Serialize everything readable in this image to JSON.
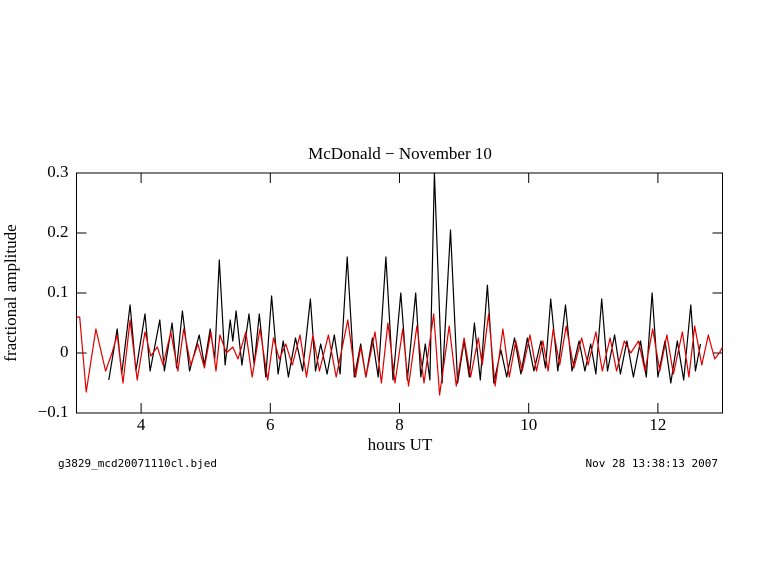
{
  "chart_data": {
    "type": "line",
    "title": "McDonald − November 10",
    "x_label": "hours UT",
    "y_label": "fractional amplitude",
    "footer_left": "g3829_mcd20071110cl.bjed",
    "footer_right": "Nov 28 13:38:13 2007",
    "xlim": [
      3,
      13
    ],
    "xticks": [
      4,
      6,
      8,
      10,
      12
    ],
    "ylim": [
      -0.1,
      0.3
    ],
    "yticks": [
      {
        "value": -0.1,
        "label": "−0.1"
      },
      0,
      0.1,
      0.2,
      0.3
    ],
    "series": [
      {
        "color": "#000000",
        "x": [
          3.5,
          3.63,
          3.7,
          3.83,
          3.92,
          4.06,
          4.14,
          4.29,
          4.36,
          4.48,
          4.55,
          4.64,
          4.75,
          4.9,
          4.98,
          5.07,
          5.14,
          5.21,
          5.3,
          5.38,
          5.42,
          5.47,
          5.56,
          5.67,
          5.75,
          5.83,
          5.93,
          6.02,
          6.12,
          6.2,
          6.28,
          6.39,
          6.5,
          6.62,
          6.7,
          6.78,
          6.88,
          6.99,
          7.08,
          7.19,
          7.3,
          7.4,
          7.48,
          7.58,
          7.67,
          7.79,
          7.9,
          8.02,
          8.12,
          8.25,
          8.33,
          8.4,
          8.47,
          8.54,
          8.66,
          8.79,
          8.9,
          9.0,
          9.08,
          9.16,
          9.25,
          9.36,
          9.46,
          9.57,
          9.66,
          9.78,
          9.88,
          9.98,
          10.08,
          10.19,
          10.26,
          10.34,
          10.45,
          10.57,
          10.67,
          10.78,
          10.87,
          10.96,
          11.04,
          11.13,
          11.22,
          11.33,
          11.42,
          11.52,
          11.62,
          11.73,
          11.82,
          11.91,
          12.0,
          12.11,
          12.2,
          12.3,
          12.4,
          12.51,
          12.58,
          12.66
        ],
        "values": [
          -0.045,
          0.04,
          -0.035,
          0.08,
          -0.03,
          0.065,
          -0.03,
          0.055,
          -0.03,
          0.05,
          -0.025,
          0.07,
          -0.03,
          0.03,
          -0.02,
          0.04,
          -0.01,
          0.155,
          -0.02,
          0.055,
          0.02,
          0.07,
          -0.02,
          0.065,
          -0.02,
          0.065,
          -0.04,
          0.095,
          -0.035,
          0.02,
          -0.04,
          0.025,
          -0.03,
          0.09,
          -0.03,
          0.015,
          -0.035,
          0.03,
          -0.035,
          0.16,
          -0.04,
          0.015,
          -0.04,
          0.025,
          -0.04,
          0.16,
          -0.045,
          0.1,
          -0.045,
          0.1,
          -0.04,
          0.015,
          -0.045,
          0.3,
          -0.05,
          0.205,
          -0.05,
          0.02,
          -0.04,
          0.05,
          -0.045,
          0.113,
          -0.05,
          0.005,
          -0.04,
          0.025,
          -0.035,
          0.025,
          -0.03,
          0.02,
          -0.025,
          0.09,
          -0.03,
          0.08,
          -0.03,
          0.02,
          -0.03,
          0.015,
          -0.035,
          0.09,
          -0.03,
          0.03,
          -0.035,
          0.02,
          -0.04,
          0.02,
          -0.04,
          0.1,
          -0.04,
          0.02,
          -0.05,
          0.02,
          -0.045,
          0.08,
          -0.03,
          0.015
        ]
      },
      {
        "color": "#e00000",
        "x": [
          3.0,
          3.05,
          3.15,
          3.3,
          3.45,
          3.55,
          3.63,
          3.72,
          3.83,
          3.94,
          4.06,
          4.15,
          4.25,
          4.34,
          4.46,
          4.57,
          4.66,
          4.77,
          4.88,
          4.98,
          5.08,
          5.16,
          5.22,
          5.32,
          5.42,
          5.5,
          5.62,
          5.72,
          5.84,
          5.96,
          6.05,
          6.14,
          6.24,
          6.34,
          6.46,
          6.56,
          6.66,
          6.76,
          6.9,
          7.02,
          7.2,
          7.32,
          7.4,
          7.48,
          7.62,
          7.72,
          7.82,
          7.93,
          8.05,
          8.14,
          8.27,
          8.38,
          8.53,
          8.62,
          8.77,
          8.88,
          9.0,
          9.1,
          9.22,
          9.28,
          9.38,
          9.48,
          9.6,
          9.7,
          9.8,
          9.9,
          10.02,
          10.12,
          10.22,
          10.3,
          10.38,
          10.48,
          10.58,
          10.7,
          10.82,
          10.92,
          11.04,
          11.14,
          11.26,
          11.36,
          11.48,
          11.58,
          11.7,
          11.8,
          11.92,
          12.03,
          12.14,
          12.24,
          12.38,
          12.48,
          12.57,
          12.68,
          12.78,
          12.88,
          12.95,
          13.0
        ],
        "values": [
          0.06,
          0.06,
          -0.065,
          0.04,
          -0.03,
          0.0,
          0.03,
          -0.05,
          0.055,
          -0.045,
          0.035,
          -0.005,
          0.01,
          -0.02,
          0.035,
          -0.03,
          0.04,
          -0.02,
          0.015,
          -0.025,
          0.035,
          -0.03,
          0.03,
          0.0,
          0.01,
          -0.01,
          0.035,
          -0.04,
          0.04,
          -0.045,
          0.025,
          -0.01,
          0.015,
          -0.02,
          0.03,
          -0.04,
          0.03,
          -0.03,
          0.03,
          -0.04,
          0.055,
          -0.04,
          0.01,
          -0.04,
          0.035,
          -0.05,
          0.05,
          -0.05,
          0.04,
          -0.055,
          0.045,
          -0.05,
          0.065,
          -0.07,
          0.045,
          -0.055,
          0.025,
          -0.04,
          0.025,
          -0.02,
          0.065,
          -0.055,
          0.04,
          -0.04,
          0.02,
          -0.03,
          0.03,
          -0.03,
          0.02,
          -0.03,
          0.04,
          -0.02,
          0.045,
          -0.025,
          0.025,
          -0.02,
          0.035,
          -0.03,
          0.025,
          -0.03,
          0.02,
          0.0,
          0.02,
          -0.03,
          0.04,
          -0.03,
          0.03,
          -0.035,
          0.035,
          -0.04,
          0.045,
          -0.02,
          0.03,
          -0.01,
          0.0,
          0.01
        ]
      }
    ]
  }
}
